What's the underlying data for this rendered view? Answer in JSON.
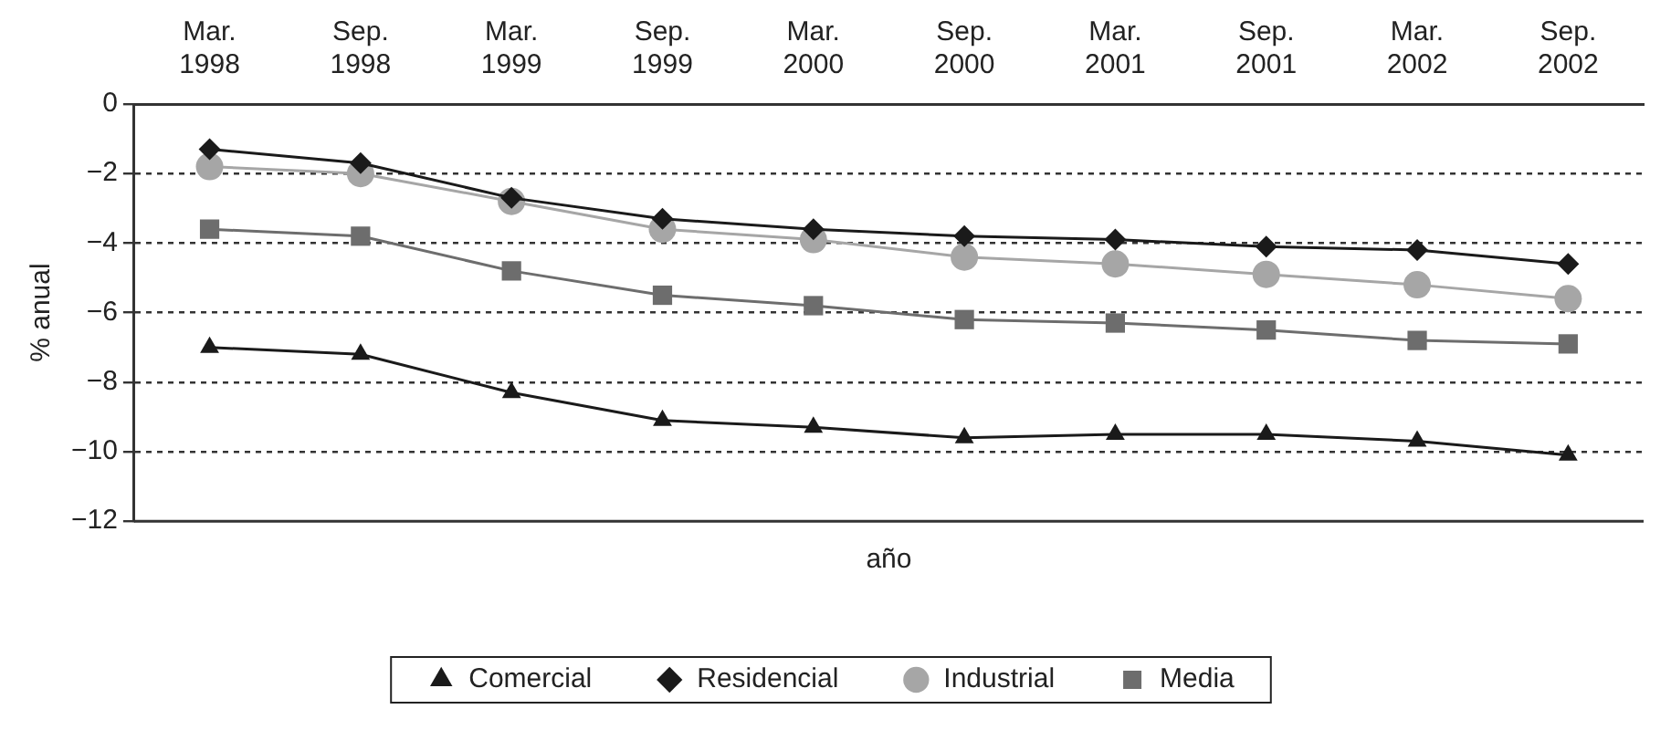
{
  "chart_data": {
    "type": "line",
    "xlabel": "año",
    "ylabel": "% anual",
    "categories": [
      "Mar. 1998",
      "Sep. 1998",
      "Mar. 1999",
      "Sep. 1999",
      "Mar. 2000",
      "Sep. 2000",
      "Mar. 2001",
      "Sep. 2001",
      "Mar. 2002",
      "Sep. 2002"
    ],
    "series": [
      {
        "name": "Comercial",
        "color": "#1a1a1a",
        "marker": "triangle",
        "values": [
          -7.0,
          -7.2,
          -8.3,
          -9.1,
          -9.3,
          -9.6,
          -9.5,
          -9.5,
          -9.7,
          -10.1
        ]
      },
      {
        "name": "Residencial",
        "color": "#1a1a1a",
        "marker": "diamond",
        "values": [
          -1.3,
          -1.7,
          -2.7,
          -3.3,
          -3.6,
          -3.8,
          -3.9,
          -4.1,
          -4.2,
          -4.6
        ]
      },
      {
        "name": "Industrial",
        "color": "#a6a6a6",
        "marker": "circle",
        "values": [
          -1.8,
          -2.0,
          -2.8,
          -3.6,
          -3.9,
          -4.4,
          -4.6,
          -4.9,
          -5.2,
          -5.6
        ]
      },
      {
        "name": "Media",
        "color": "#6d6d6d",
        "marker": "square",
        "values": [
          -3.6,
          -3.8,
          -4.8,
          -5.5,
          -5.8,
          -6.2,
          -6.3,
          -6.5,
          -6.8,
          -6.9
        ]
      }
    ],
    "ylim": [
      -12,
      0
    ],
    "yticks": [
      0,
      -2,
      -4,
      -6,
      -8,
      -10,
      -12
    ],
    "grid": "y",
    "legend": "bottom"
  }
}
